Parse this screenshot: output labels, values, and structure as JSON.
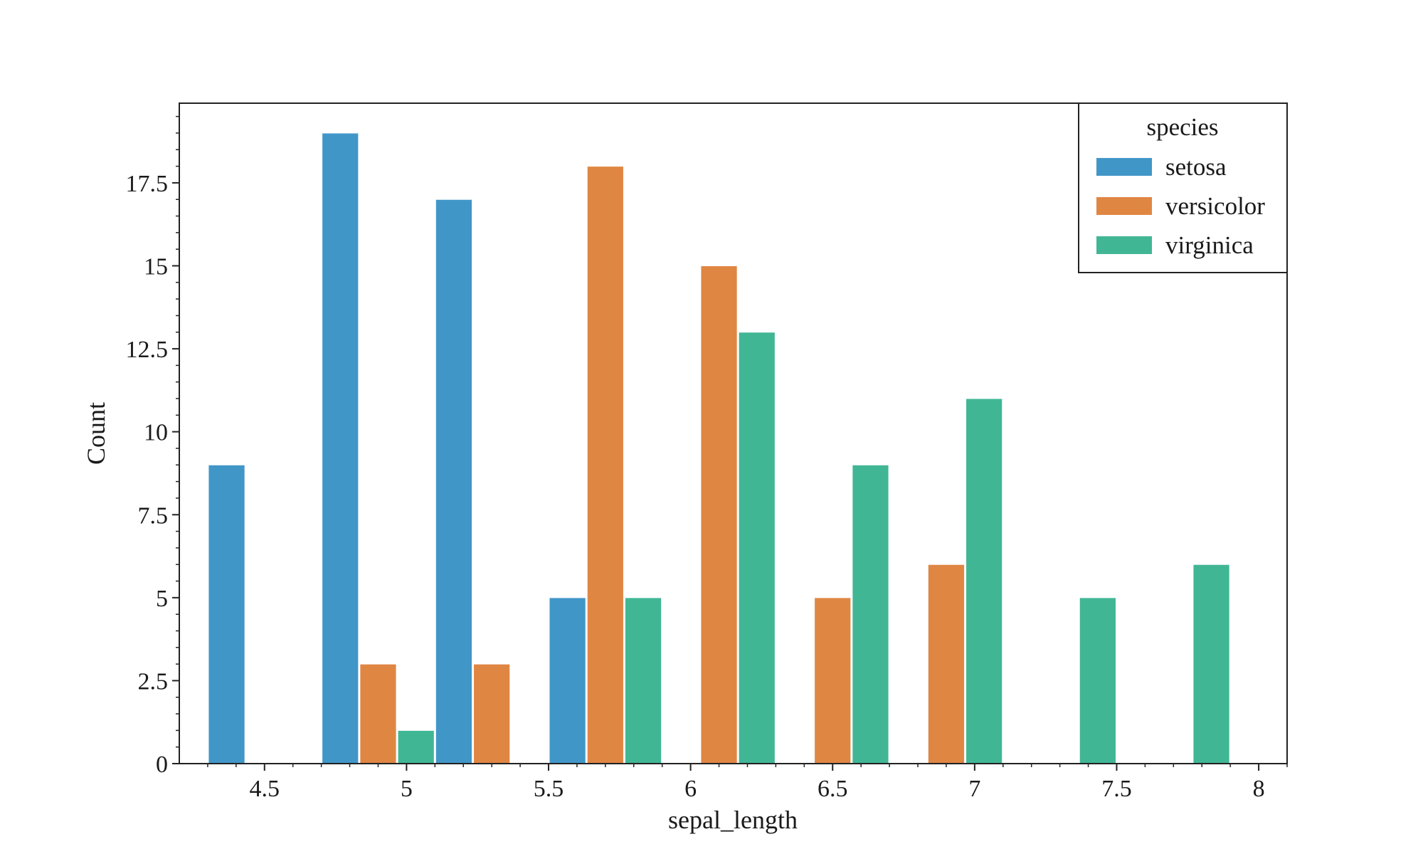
{
  "chart_data": {
    "type": "bar",
    "title": "",
    "xlabel": "sepal_length",
    "ylabel": "Count",
    "xlim": [
      4.2,
      8.1
    ],
    "ylim": [
      0,
      19.9
    ],
    "bin_starts": [
      4.3,
      4.7,
      5.1,
      5.5,
      5.9,
      6.3,
      6.7,
      7.1,
      7.5,
      7.9
    ],
    "bin_width": 0.4,
    "x_ticks": [
      "4.5",
      "5",
      "5.5",
      "6",
      "6.5",
      "7",
      "7.5",
      "8"
    ],
    "x_tick_values": [
      4.5,
      5,
      5.5,
      6,
      6.5,
      7,
      7.5,
      8
    ],
    "y_ticks": [
      "0",
      "2.5",
      "5",
      "7.5",
      "10",
      "12.5",
      "15",
      "17.5"
    ],
    "y_tick_values": [
      0,
      2.5,
      5,
      7.5,
      10,
      12.5,
      15,
      17.5
    ],
    "grid": false,
    "series": [
      {
        "name": "setosa",
        "color": "#4196c8",
        "values": [
          9,
          19,
          17,
          5,
          0,
          0,
          0,
          0,
          0,
          0
        ]
      },
      {
        "name": "versicolor",
        "color": "#e08643",
        "values": [
          0,
          3,
          3,
          18,
          15,
          5,
          6,
          0,
          0,
          0
        ]
      },
      {
        "name": "virginica",
        "color": "#41b695",
        "values": [
          0,
          1,
          0,
          5,
          13,
          9,
          11,
          5,
          6,
          0
        ]
      }
    ],
    "legend": {
      "title": "species",
      "placement": "top-right"
    }
  }
}
